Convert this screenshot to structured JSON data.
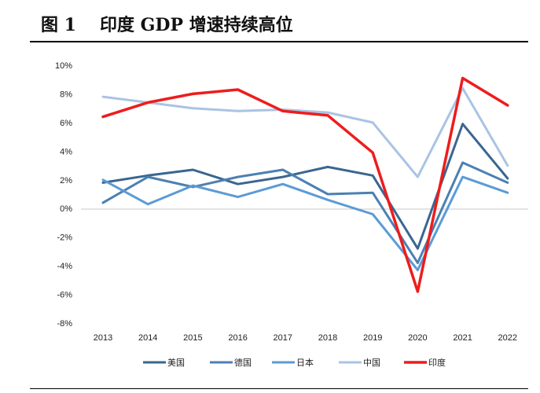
{
  "figure": {
    "label": "图 1",
    "caption": "印度 GDP 增速持续高位"
  },
  "chart_data": {
    "type": "line",
    "title": "印度 GDP 增速持续高位",
    "xlabel": "",
    "ylabel": "",
    "ylim": [
      -8,
      10
    ],
    "y_ticks": [
      "10%",
      "8%",
      "6%",
      "4%",
      "2%",
      "0%",
      "-2%",
      "-4%",
      "-6%",
      "-8%"
    ],
    "categories": [
      "2013",
      "2014",
      "2015",
      "2016",
      "2017",
      "2018",
      "2019",
      "2020",
      "2021",
      "2022"
    ],
    "grid": false,
    "legend_position": "bottom",
    "series": [
      {
        "name": "美国",
        "color": "#3a6690",
        "width": 3,
        "values": [
          1.8,
          2.3,
          2.7,
          1.7,
          2.2,
          2.9,
          2.3,
          -2.8,
          5.9,
          2.1
        ]
      },
      {
        "name": "德国",
        "color": "#4b80b3",
        "width": 3,
        "values": [
          0.4,
          2.2,
          1.5,
          2.2,
          2.7,
          1.0,
          1.1,
          -3.8,
          3.2,
          1.8
        ]
      },
      {
        "name": "日本",
        "color": "#5b9bd5",
        "width": 3,
        "values": [
          2.0,
          0.3,
          1.6,
          0.8,
          1.7,
          0.6,
          -0.4,
          -4.3,
          2.2,
          1.1
        ]
      },
      {
        "name": "中国",
        "color": "#a9c4e3",
        "width": 3,
        "values": [
          7.8,
          7.4,
          7.0,
          6.8,
          6.9,
          6.7,
          6.0,
          2.2,
          8.4,
          3.0
        ]
      },
      {
        "name": "印度",
        "color": "#ee1c1c",
        "width": 3.5,
        "values": [
          6.4,
          7.4,
          8.0,
          8.3,
          6.8,
          6.5,
          3.9,
          -5.8,
          9.1,
          7.2
        ]
      }
    ]
  }
}
